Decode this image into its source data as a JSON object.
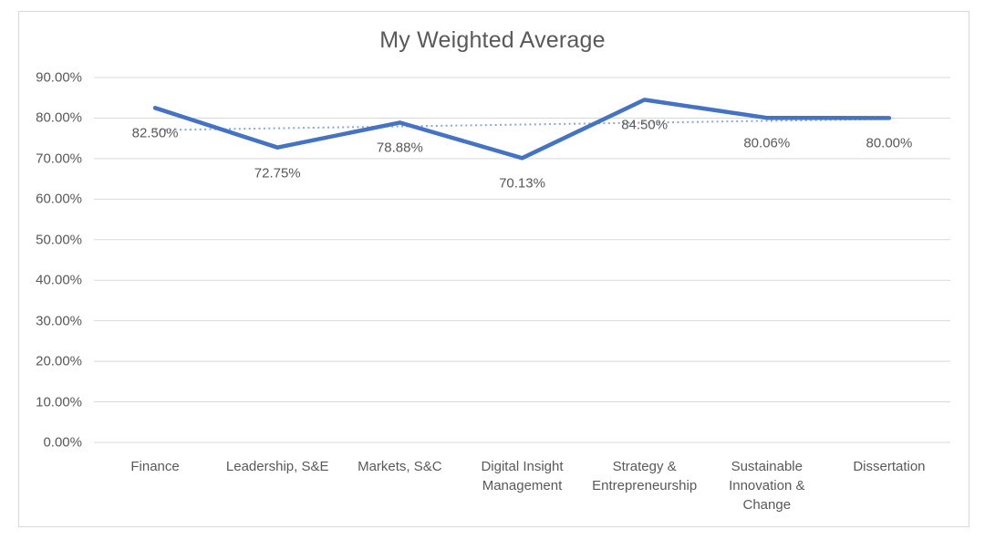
{
  "chart_data": {
    "type": "line",
    "title": "My Weighted Average",
    "categories": [
      "Finance",
      "Leadership, S&E",
      "Markets, S&C",
      "Digital Insight Management",
      "Strategy & Entrepreneurship",
      "Sustainable Innovation & Change",
      "Dissertation"
    ],
    "series": [
      {
        "name": "weighted-average",
        "values": [
          82.5,
          72.75,
          78.88,
          70.13,
          84.5,
          80.06,
          80.0
        ],
        "data_labels": [
          "82.50%",
          "72.75%",
          "78.88%",
          "70.13%",
          "84.50%",
          "80.06%",
          "80.00%"
        ],
        "color": "#4472C4",
        "style": "solid"
      },
      {
        "name": "linear-trendline",
        "style": "dotted",
        "color": "#4472C4",
        "computed_from": "weighted-average"
      }
    ],
    "y_axis": {
      "min": 0,
      "max": 90,
      "step": 10,
      "tick_labels": [
        "0.00%",
        "10.00%",
        "20.00%",
        "30.00%",
        "40.00%",
        "50.00%",
        "60.00%",
        "70.00%",
        "80.00%",
        "90.00%"
      ]
    },
    "xlabel": "",
    "ylabel": "",
    "grid": true,
    "legend": false,
    "colors": {
      "series_line": "#4472C4",
      "trendline": "#4472C4",
      "gridline": "#d9d9d9",
      "text": "#595959",
      "frame_border": "#d9d9d9",
      "background": "#ffffff"
    }
  }
}
